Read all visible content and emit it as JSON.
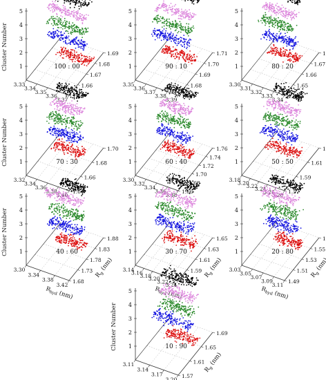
{
  "colors": {
    "cluster_1": "#dd1111",
    "cluster_2": "#1515e0",
    "cluster_3": "#2e8b2e",
    "cluster_4": "#dd88dd",
    "cluster_5": "#000000",
    "axis": "#333333",
    "grid": "#aaaaaa"
  },
  "chart_data": [
    {
      "type": "scatter",
      "panel": "100 : 00",
      "zlabel": "Cluster Number",
      "xlabel": "",
      "ylabel": "",
      "z_ticks": [
        "1",
        "2",
        "3",
        "4",
        "5"
      ],
      "x_ticks": [
        "3.33",
        "3.34",
        "3.35",
        "3.36",
        "3.37"
      ],
      "y_ticks": [
        "1.65",
        "1.66",
        "1.67",
        "1.68",
        "1.69"
      ],
      "series": [
        {
          "cluster": 1,
          "r_hyd": [
            3.345,
            3.375
          ],
          "r_g": [
            1.655,
            1.685
          ]
        },
        {
          "cluster": 2,
          "r_hyd": [
            3.335,
            3.37
          ],
          "r_g": [
            1.655,
            1.685
          ]
        },
        {
          "cluster": 3,
          "r_hyd": [
            3.335,
            3.37
          ],
          "r_g": [
            1.655,
            1.685
          ]
        },
        {
          "cluster": 4,
          "r_hyd": [
            3.335,
            3.37
          ],
          "r_g": [
            1.655,
            1.685
          ]
        },
        {
          "cluster": 5,
          "r_hyd": [
            3.34,
            3.372
          ],
          "r_g": [
            1.655,
            1.685
          ]
        }
      ]
    },
    {
      "type": "scatter",
      "panel": "90 : 10",
      "zlabel": "",
      "xlabel": "",
      "ylabel": "",
      "z_ticks": [
        "1",
        "2",
        "3",
        "4",
        "5"
      ],
      "x_ticks": [
        "3.35",
        "3.36",
        "3.37",
        "3.38",
        "3.39"
      ],
      "y_ticks": [
        "1.67",
        "1.68",
        "1.69",
        "1.70",
        "1.71"
      ],
      "series": [
        {
          "cluster": 1,
          "r_hyd": [
            3.36,
            3.39
          ],
          "r_g": [
            1.675,
            1.705
          ]
        },
        {
          "cluster": 2,
          "r_hyd": [
            3.35,
            3.385
          ],
          "r_g": [
            1.675,
            1.705
          ]
        },
        {
          "cluster": 3,
          "r_hyd": [
            3.352,
            3.387
          ],
          "r_g": [
            1.675,
            1.705
          ]
        },
        {
          "cluster": 4,
          "r_hyd": [
            3.355,
            3.388
          ],
          "r_g": [
            1.675,
            1.705
          ]
        },
        {
          "cluster": 5,
          "r_hyd": [
            3.36,
            3.39
          ],
          "r_g": [
            1.68,
            1.708
          ]
        }
      ]
    },
    {
      "type": "scatter",
      "panel": "80 : 20",
      "zlabel": "",
      "xlabel": "",
      "ylabel": "",
      "z_ticks": [
        "1",
        "2",
        "3",
        "4",
        "5"
      ],
      "x_ticks": [
        "3.30",
        "3.31",
        "3.32",
        "3.33",
        "3.34"
      ],
      "y_ticks": [
        "1.64",
        "1.65",
        "1.66",
        "1.67",
        "1.68"
      ],
      "series": [
        {
          "cluster": 1,
          "r_hyd": [
            3.31,
            3.338
          ],
          "r_g": [
            1.645,
            1.675
          ]
        },
        {
          "cluster": 2,
          "r_hyd": [
            3.305,
            3.335
          ],
          "r_g": [
            1.645,
            1.675
          ]
        },
        {
          "cluster": 3,
          "r_hyd": [
            3.302,
            3.333
          ],
          "r_g": [
            1.645,
            1.675
          ]
        },
        {
          "cluster": 4,
          "r_hyd": [
            3.305,
            3.335
          ],
          "r_g": [
            1.645,
            1.675
          ]
        },
        {
          "cluster": 5,
          "r_hyd": [
            3.31,
            3.337
          ],
          "r_g": [
            1.65,
            1.675
          ]
        }
      ]
    },
    {
      "type": "scatter",
      "panel": "70 : 30",
      "zlabel": "Cluster Number",
      "xlabel": "",
      "ylabel": "",
      "z_ticks": [
        "1",
        "2",
        "3",
        "4",
        "5"
      ],
      "x_ticks": [
        "3.32",
        "3.34",
        "3.36",
        "3.38",
        "3.40"
      ],
      "y_ticks": [
        "1.64",
        "1.66",
        "1.68",
        "1.70"
      ],
      "series": [
        {
          "cluster": 1,
          "r_hyd": [
            3.34,
            3.395
          ],
          "r_g": [
            1.645,
            1.695
          ]
        },
        {
          "cluster": 2,
          "r_hyd": [
            3.33,
            3.39
          ],
          "r_g": [
            1.645,
            1.695
          ]
        },
        {
          "cluster": 3,
          "r_hyd": [
            3.33,
            3.39
          ],
          "r_g": [
            1.645,
            1.695
          ]
        },
        {
          "cluster": 4,
          "r_hyd": [
            3.335,
            3.392
          ],
          "r_g": [
            1.645,
            1.695
          ]
        },
        {
          "cluster": 5,
          "r_hyd": [
            3.34,
            3.395
          ],
          "r_g": [
            1.65,
            1.698
          ]
        }
      ]
    },
    {
      "type": "scatter",
      "panel": "60 : 40",
      "zlabel": "",
      "xlabel": "",
      "ylabel": "",
      "z_ticks": [
        "1",
        "2",
        "3",
        "4",
        "5"
      ],
      "x_ticks": [
        "3.30",
        "3.32",
        "3.34",
        "3.36",
        "3.38"
      ],
      "y_ticks": [
        "1.66",
        "1.68",
        "1.70",
        "1.72",
        "1.74",
        "1.76"
      ],
      "series": [
        {
          "cluster": 1,
          "r_hyd": [
            3.32,
            3.375
          ],
          "r_g": [
            1.67,
            1.75
          ]
        },
        {
          "cluster": 2,
          "r_hyd": [
            3.31,
            3.37
          ],
          "r_g": [
            1.67,
            1.75
          ]
        },
        {
          "cluster": 3,
          "r_hyd": [
            3.31,
            3.37
          ],
          "r_g": [
            1.67,
            1.75
          ]
        },
        {
          "cluster": 4,
          "r_hyd": [
            3.315,
            3.372
          ],
          "r_g": [
            1.67,
            1.75
          ]
        },
        {
          "cluster": 5,
          "r_hyd": [
            3.32,
            3.375
          ],
          "r_g": [
            1.68,
            1.755
          ]
        }
      ]
    },
    {
      "type": "scatter",
      "panel": "50 : 50",
      "zlabel": "",
      "xlabel": "",
      "ylabel": "",
      "z_ticks": [
        "1",
        "2",
        "3",
        "4",
        "5"
      ],
      "x_ticks": [
        "3.18",
        "3.20",
        "3.22",
        "3.24",
        "3.26",
        "3.28"
      ],
      "y_ticks": [
        "1.57",
        "1.59",
        "1.61",
        "1.63"
      ],
      "series": [
        {
          "cluster": 1,
          "r_hyd": [
            3.2,
            3.275
          ],
          "r_g": [
            1.575,
            1.625
          ]
        },
        {
          "cluster": 2,
          "r_hyd": [
            3.19,
            3.27
          ],
          "r_g": [
            1.575,
            1.625
          ]
        },
        {
          "cluster": 3,
          "r_hyd": [
            3.195,
            3.272
          ],
          "r_g": [
            1.575,
            1.625
          ]
        },
        {
          "cluster": 4,
          "r_hyd": [
            3.2,
            3.275
          ],
          "r_g": [
            1.575,
            1.625
          ]
        },
        {
          "cluster": 5,
          "r_hyd": [
            3.21,
            3.278
          ],
          "r_g": [
            1.58,
            1.628
          ]
        }
      ]
    },
    {
      "type": "scatter",
      "panel": "40 : 60",
      "zlabel": "Cluster Number",
      "xlabel": "Rhyd",
      "ylabel": "Rg",
      "xunit": "(nm)",
      "yunit": "(nm)",
      "z_ticks": [
        "1",
        "2",
        "3",
        "4",
        "5"
      ],
      "x_ticks": [
        "3.30",
        "3.34",
        "3.38",
        "3.42"
      ],
      "y_ticks": [
        "1.68",
        "1.73",
        "1.78",
        "1.83",
        "1.88"
      ],
      "series": [
        {
          "cluster": 1,
          "r_hyd": [
            3.34,
            3.42
          ],
          "r_g": [
            1.69,
            1.86
          ]
        },
        {
          "cluster": 2,
          "r_hyd": [
            3.32,
            3.415
          ],
          "r_g": [
            1.69,
            1.86
          ]
        },
        {
          "cluster": 3,
          "r_hyd": [
            3.32,
            3.415
          ],
          "r_g": [
            1.69,
            1.86
          ]
        },
        {
          "cluster": 4,
          "r_hyd": [
            3.305,
            3.41
          ],
          "r_g": [
            1.69,
            1.86
          ]
        },
        {
          "cluster": 5,
          "r_hyd": [
            3.35,
            3.42
          ],
          "r_g": [
            1.7,
            1.86
          ]
        }
      ]
    },
    {
      "type": "scatter",
      "panel": "30 : 70",
      "zlabel": "",
      "xlabel": "Rhyd",
      "ylabel": "Rg",
      "xunit": "(nm)",
      "yunit": "(nm)",
      "z_ticks": [
        "1",
        "2",
        "3",
        "4",
        "5"
      ],
      "x_ticks": [
        "3.14",
        "3.16",
        "3.18",
        "3.20",
        "3.22",
        "3.24"
      ],
      "y_ticks": [
        "1.57",
        "1.59",
        "1.61",
        "1.63",
        "1.65"
      ],
      "series": [
        {
          "cluster": 1,
          "r_hyd": [
            3.17,
            3.24
          ],
          "r_g": [
            1.575,
            1.645
          ]
        },
        {
          "cluster": 2,
          "r_hyd": [
            3.15,
            3.235
          ],
          "r_g": [
            1.575,
            1.645
          ]
        },
        {
          "cluster": 3,
          "r_hyd": [
            3.15,
            3.235
          ],
          "r_g": [
            1.575,
            1.645
          ]
        },
        {
          "cluster": 4,
          "r_hyd": [
            3.155,
            3.238
          ],
          "r_g": [
            1.575,
            1.645
          ]
        },
        {
          "cluster": 5,
          "r_hyd": [
            3.17,
            3.24
          ],
          "r_g": [
            1.58,
            1.648
          ]
        }
      ]
    },
    {
      "type": "scatter",
      "panel": "20 : 80",
      "zlabel": "",
      "xlabel": "Rhyd",
      "ylabel": "Rg",
      "xunit": "(nm)",
      "yunit": "(nm)",
      "z_ticks": [
        "1",
        "2",
        "3",
        "4",
        "5"
      ],
      "x_ticks": [
        "3.03",
        "3.05",
        "3.07",
        "3.09",
        "3.11"
      ],
      "y_ticks": [
        "1.49",
        "1.51",
        "1.53",
        "1.55",
        "1.57"
      ],
      "series": [
        {
          "cluster": 1,
          "r_hyd": [
            3.06,
            3.11
          ],
          "r_g": [
            1.495,
            1.565
          ]
        },
        {
          "cluster": 2,
          "r_hyd": [
            3.045,
            3.105
          ],
          "r_g": [
            1.495,
            1.565
          ]
        },
        {
          "cluster": 3,
          "r_hyd": [
            3.04,
            3.105
          ],
          "r_g": [
            1.495,
            1.565
          ]
        },
        {
          "cluster": 4,
          "r_hyd": [
            3.035,
            3.1
          ],
          "r_g": [
            1.495,
            1.565
          ]
        },
        {
          "cluster": 5,
          "r_hyd": [
            3.05,
            3.108
          ],
          "r_g": [
            1.5,
            1.565
          ]
        }
      ]
    },
    {
      "type": "scatter",
      "panel": "10 : 90",
      "zlabel": "Cluster Number",
      "xlabel": "Rhyd",
      "ylabel": "Rg",
      "xunit": "(nm)",
      "yunit": "(nm)",
      "z_ticks": [
        "1",
        "2",
        "3",
        "4",
        "5"
      ],
      "x_ticks": [
        "3.11",
        "3.14",
        "3.17",
        "3.20"
      ],
      "y_ticks": [
        "1.57",
        "1.61",
        "1.65",
        "1.69"
      ],
      "series": [
        {
          "cluster": 1,
          "r_hyd": [
            3.14,
            3.205
          ],
          "r_g": [
            1.575,
            1.68
          ]
        },
        {
          "cluster": 2,
          "r_hyd": [
            3.115,
            3.195
          ],
          "r_g": [
            1.575,
            1.68
          ]
        },
        {
          "cluster": 3,
          "r_hyd": [
            3.13,
            3.2
          ],
          "r_g": [
            1.575,
            1.68
          ]
        },
        {
          "cluster": 4,
          "r_hyd": [
            3.13,
            3.2
          ],
          "r_g": [
            1.575,
            1.68
          ]
        },
        {
          "cluster": 5,
          "r_hyd": [
            3.13,
            3.2
          ],
          "r_g": [
            1.58,
            1.685
          ]
        }
      ]
    }
  ]
}
